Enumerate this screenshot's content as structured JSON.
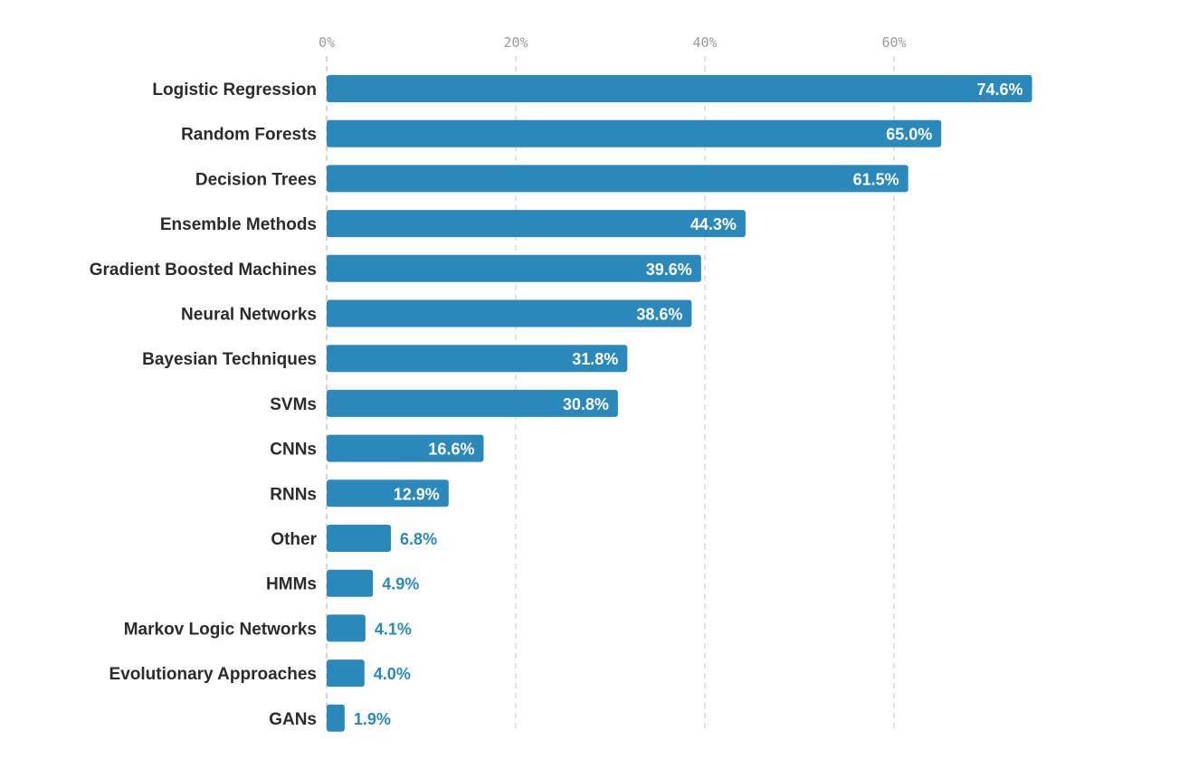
{
  "chart_data": {
    "type": "bar",
    "orientation": "horizontal",
    "categories": [
      "Logistic Regression",
      "Random Forests",
      "Decision Trees",
      "Ensemble Methods",
      "Gradient Boosted Machines",
      "Neural Networks",
      "Bayesian Techniques",
      "SVMs",
      "CNNs",
      "RNNs",
      "Other",
      "HMMs",
      "Markov Logic Networks",
      "Evolutionary Approaches",
      "GANs"
    ],
    "values": [
      74.6,
      65.0,
      61.5,
      44.3,
      39.6,
      38.6,
      31.8,
      30.8,
      16.6,
      12.9,
      6.8,
      4.9,
      4.1,
      4.0,
      1.9
    ],
    "value_labels": [
      "74.6%",
      "65.0%",
      "61.5%",
      "44.3%",
      "39.6%",
      "38.6%",
      "31.8%",
      "30.8%",
      "16.6%",
      "12.9%",
      "6.8%",
      "4.9%",
      "4.1%",
      "4.0%",
      "1.9%"
    ],
    "x_ticks": [
      0,
      20,
      40,
      60
    ],
    "x_tick_labels": [
      "0%",
      "20%",
      "40%",
      "60%"
    ],
    "xlim": [
      0,
      75
    ],
    "title": "",
    "xlabel": "",
    "ylabel": "",
    "grid": true,
    "legend": "none",
    "colors": {
      "bar": "#2a88bb",
      "label_inside": "#ffffff",
      "label_outside": "#2a88bb",
      "category_text": "#2b2b2b",
      "tick_text": "#9a9a9a"
    }
  }
}
